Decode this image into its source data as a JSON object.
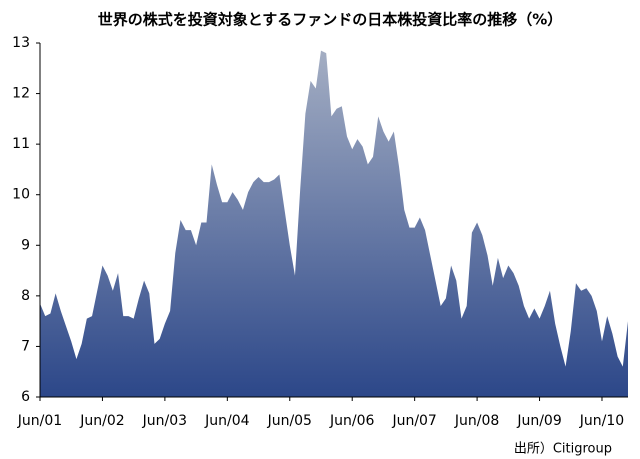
{
  "chart_data": {
    "type": "area",
    "title": "世界の株式を投資対象とするファンドの日本株投資比率の推移（%）",
    "source": "出所）Citigroup",
    "categories": [
      "Jun/01",
      null,
      null,
      null,
      null,
      null,
      null,
      null,
      null,
      null,
      null,
      null,
      "Jun/02",
      null,
      null,
      null,
      null,
      null,
      null,
      null,
      null,
      null,
      null,
      null,
      "Jun/03",
      null,
      null,
      null,
      null,
      null,
      null,
      null,
      null,
      null,
      null,
      null,
      "Jun/04",
      null,
      null,
      null,
      null,
      null,
      null,
      null,
      null,
      null,
      null,
      null,
      "Jun/05",
      null,
      null,
      null,
      null,
      null,
      null,
      null,
      null,
      null,
      null,
      null,
      "Jun/06",
      null,
      null,
      null,
      null,
      null,
      null,
      null,
      null,
      null,
      null,
      null,
      "Jun/07",
      null,
      null,
      null,
      null,
      null,
      null,
      null,
      null,
      null,
      null,
      null,
      "Jun/08",
      null,
      null,
      null,
      null,
      null,
      null,
      null,
      null,
      null,
      null,
      null,
      "Jun/09",
      null,
      null,
      null,
      null,
      null,
      null,
      null,
      null,
      null,
      null,
      null,
      "Jun/10",
      null,
      null,
      null,
      null,
      null
    ],
    "values": [
      7.85,
      7.6,
      7.65,
      8.05,
      7.7,
      7.4,
      7.1,
      6.75,
      7.05,
      7.55,
      7.6,
      8.1,
      8.6,
      8.4,
      8.1,
      8.45,
      7.6,
      7.6,
      7.55,
      7.95,
      8.3,
      8.05,
      7.05,
      7.15,
      7.45,
      7.7,
      8.85,
      9.5,
      9.3,
      9.3,
      9.0,
      9.45,
      9.45,
      10.6,
      10.2,
      9.85,
      9.85,
      10.05,
      9.9,
      9.7,
      10.05,
      10.25,
      10.35,
      10.25,
      10.25,
      10.3,
      10.4,
      9.7,
      9.0,
      8.4,
      10.1,
      11.6,
      12.25,
      12.1,
      12.85,
      12.8,
      11.55,
      11.7,
      11.75,
      11.15,
      10.9,
      11.1,
      10.95,
      10.6,
      10.75,
      11.55,
      11.25,
      11.05,
      11.25,
      10.55,
      9.7,
      9.35,
      9.35,
      9.55,
      9.3,
      8.8,
      8.3,
      7.8,
      7.95,
      8.6,
      8.3,
      7.55,
      7.8,
      9.25,
      9.45,
      9.2,
      8.8,
      8.2,
      8.75,
      8.35,
      8.6,
      8.45,
      8.2,
      7.8,
      7.55,
      7.75,
      7.55,
      7.8,
      8.1,
      7.45,
      7.0,
      6.6,
      7.3,
      8.25,
      8.1,
      8.15,
      8.0,
      7.7,
      7.1,
      7.6,
      7.25,
      6.8,
      6.6,
      7.5
    ],
    "colors": [
      "#a4aec3",
      "#2c4789"
    ],
    "ylim": [
      6,
      13
    ],
    "yticks": [
      6,
      7,
      8,
      9,
      10,
      11,
      12,
      13
    ]
  }
}
